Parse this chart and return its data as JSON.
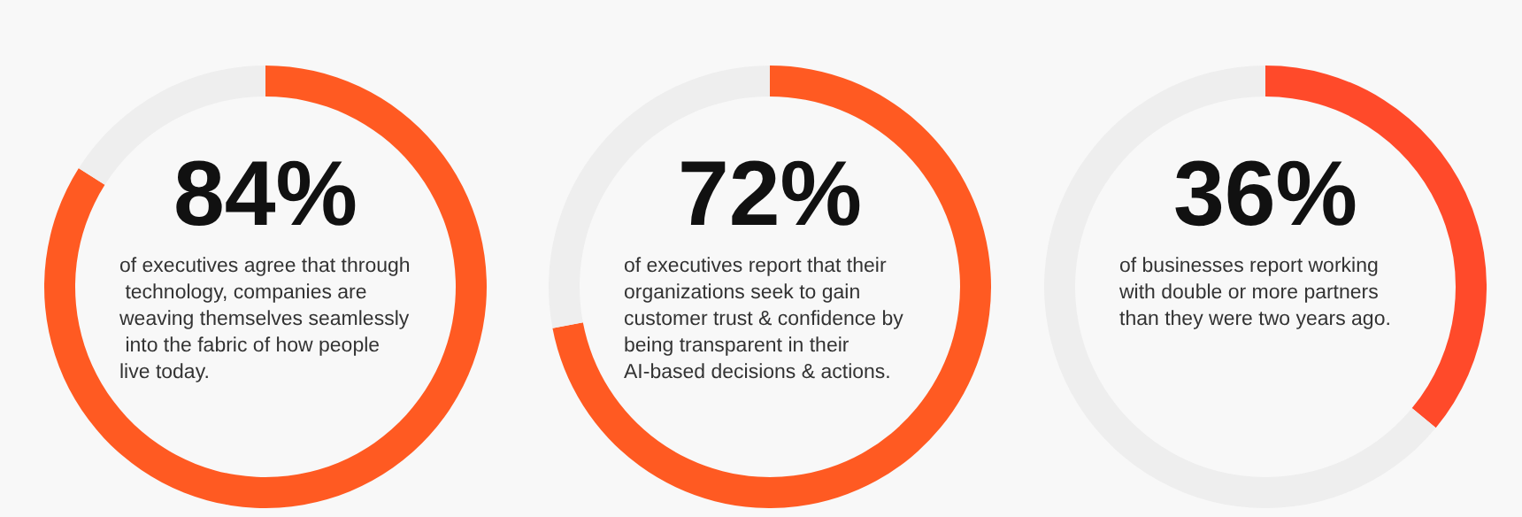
{
  "chart_data": [
    {
      "type": "donut",
      "categories": [
        null,
        null
      ],
      "values": [
        84,
        16
      ],
      "colors": [
        "#ff5a22",
        "#eeeeee"
      ],
      "value_labels": [
        "84%",
        null
      ],
      "annotations": [
        "of executives agree that through technology, companies are weaving themselves seamlessly into the fabric of how people live today."
      ]
    },
    {
      "type": "donut",
      "categories": [
        null,
        null
      ],
      "values": [
        72,
        28
      ],
      "colors": [
        "#ff5a22",
        "#eeeeee"
      ],
      "value_labels": [
        "72%",
        null
      ],
      "annotations": [
        "of executives report that their organizations seek to gain customer trust & confidence by being transparent in their AI-based decisions & actions."
      ]
    },
    {
      "type": "donut",
      "categories": [
        null,
        null
      ],
      "values": [
        36,
        64
      ],
      "colors": [
        "#ff4a2a",
        "#eeeeee"
      ],
      "value_labels": [
        "36%",
        null
      ],
      "annotations": [
        "of businesses report working with double or more partners than they were two years ago."
      ]
    }
  ]
}
